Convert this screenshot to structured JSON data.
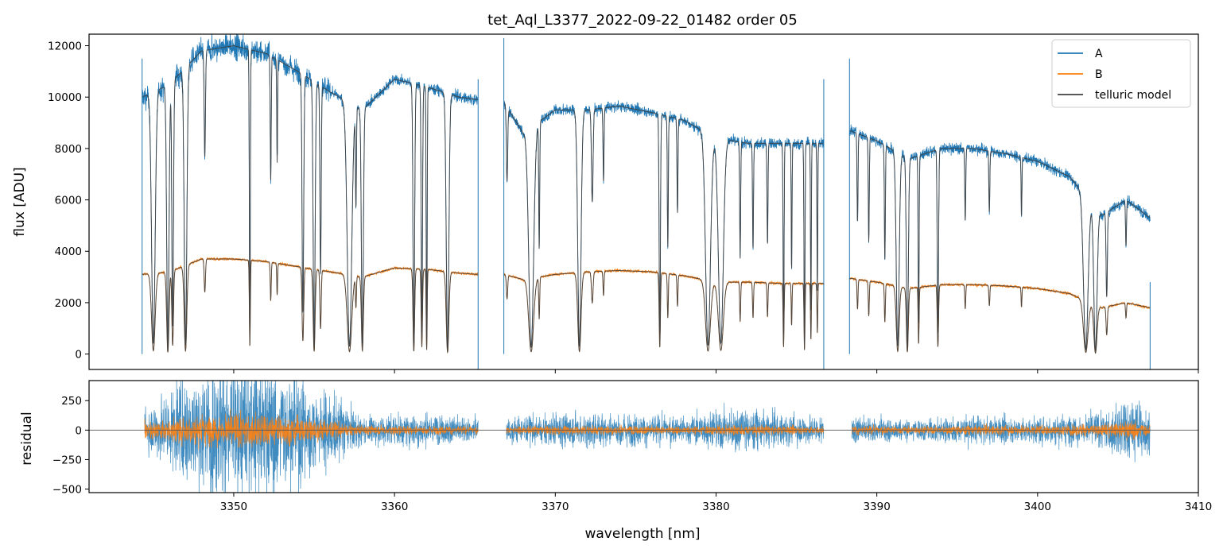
{
  "chart_data": [
    {
      "type": "line",
      "panel": "top",
      "title": "tet_Aql_L3377_2022-09-22_01482  order 05",
      "xlabel": "",
      "ylabel": "flux [ADU]",
      "xlim": [
        3341,
        3410
      ],
      "ylim": [
        -600,
        12450
      ],
      "x_ticks": [
        3350,
        3360,
        3370,
        3380,
        3390,
        3400,
        3410
      ],
      "y_ticks": [
        0,
        2000,
        4000,
        6000,
        8000,
        10000,
        12000
      ],
      "y_tick_labels": [
        "0",
        "2000",
        "4000",
        "6000",
        "8000",
        "10000",
        "12000"
      ],
      "legend_position": "top-right",
      "segments": [
        {
          "x_start": 3344.3,
          "x_end": 3365.2
        },
        {
          "x_start": 3366.8,
          "x_end": 3386.7
        },
        {
          "x_start": 3388.3,
          "x_end": 3407.0
        }
      ],
      "series": [
        {
          "name": "A",
          "color": "#1f77b4",
          "continuum": [
            [
              3344.3,
              10000
            ],
            [
              3346,
              10500
            ],
            [
              3348,
              11800
            ],
            [
              3350,
              12000
            ],
            [
              3352,
              11700
            ],
            [
              3354,
              11000
            ],
            [
              3356,
              10200
            ],
            [
              3358,
              9500
            ],
            [
              3360,
              10700
            ],
            [
              3362,
              10400
            ],
            [
              3364,
              10000
            ],
            [
              3365.2,
              9900
            ],
            [
              3366.8,
              9800
            ],
            [
              3368,
              8600
            ],
            [
              3370,
              9500
            ],
            [
              3372,
              9500
            ],
            [
              3374,
              9650
            ],
            [
              3376,
              9400
            ],
            [
              3378,
              9100
            ],
            [
              3380,
              8400
            ],
            [
              3382,
              8200
            ],
            [
              3384,
              8200
            ],
            [
              3386.7,
              8200
            ],
            [
              3388.3,
              8700
            ],
            [
              3390,
              8300
            ],
            [
              3392,
              7600
            ],
            [
              3394,
              8000
            ],
            [
              3396,
              8000
            ],
            [
              3398,
              7800
            ],
            [
              3400,
              7500
            ],
            [
              3402,
              6900
            ],
            [
              3404,
              5400
            ],
            [
              3405.5,
              6000
            ],
            [
              3407,
              5300
            ]
          ],
          "absorption_lines": [
            [
              3345.0,
              0.96,
              0.22
            ],
            [
              3345.9,
              0.98,
              0.14
            ],
            [
              3346.2,
              0.9,
              0.1
            ],
            [
              3347.0,
              0.97,
              0.16
            ],
            [
              3348.2,
              0.35,
              0.08
            ],
            [
              3351.0,
              0.92,
              0.06
            ],
            [
              3352.3,
              0.42,
              0.06
            ],
            [
              3352.7,
              0.35,
              0.05
            ],
            [
              3354.3,
              0.85,
              0.1
            ],
            [
              3355.0,
              0.97,
              0.12
            ],
            [
              3355.4,
              0.7,
              0.08
            ],
            [
              3357.2,
              0.97,
              0.28
            ],
            [
              3357.6,
              0.4,
              0.06
            ],
            [
              3358.0,
              0.96,
              0.12
            ],
            [
              3361.2,
              0.97,
              0.1
            ],
            [
              3361.7,
              0.92,
              0.08
            ],
            [
              3362.0,
              0.95,
              0.06
            ],
            [
              3363.3,
              0.98,
              0.16
            ],
            [
              3367.0,
              0.3,
              0.08
            ],
            [
              3368.5,
              0.97,
              0.3
            ],
            [
              3369.0,
              0.55,
              0.06
            ],
            [
              3371.5,
              0.97,
              0.2
            ],
            [
              3372.3,
              0.38,
              0.1
            ],
            [
              3373.0,
              0.3,
              0.06
            ],
            [
              3376.5,
              0.92,
              0.08
            ],
            [
              3377.0,
              0.55,
              0.06
            ],
            [
              3377.6,
              0.4,
              0.06
            ],
            [
              3379.5,
              0.96,
              0.3
            ],
            [
              3380.3,
              0.95,
              0.3
            ],
            [
              3381.5,
              0.55,
              0.06
            ],
            [
              3382.3,
              0.5,
              0.06
            ],
            [
              3383.2,
              0.48,
              0.06
            ],
            [
              3384.2,
              0.9,
              0.06
            ],
            [
              3384.7,
              0.6,
              0.05
            ],
            [
              3385.5,
              0.95,
              0.06
            ],
            [
              3385.9,
              0.8,
              0.05
            ],
            [
              3386.3,
              0.7,
              0.05
            ],
            [
              3388.8,
              0.4,
              0.06
            ],
            [
              3389.5,
              0.48,
              0.06
            ],
            [
              3390.5,
              0.55,
              0.06
            ],
            [
              3391.3,
              0.96,
              0.18
            ],
            [
              3391.9,
              0.97,
              0.12
            ],
            [
              3392.6,
              0.85,
              0.06
            ],
            [
              3393.8,
              0.9,
              0.08
            ],
            [
              3395.5,
              0.35,
              0.06
            ],
            [
              3397.0,
              0.3,
              0.06
            ],
            [
              3399.0,
              0.3,
              0.05
            ],
            [
              3403.0,
              0.97,
              0.28
            ],
            [
              3403.6,
              0.98,
              0.2
            ],
            [
              3404.3,
              0.6,
              0.08
            ],
            [
              3405.5,
              0.3,
              0.06
            ]
          ],
          "noise_amplitude": 150
        },
        {
          "name": "B",
          "color": "#ff7f0e",
          "continuum": [
            [
              3344.3,
              3100
            ],
            [
              3346,
              3200
            ],
            [
              3348,
              3700
            ],
            [
              3350,
              3700
            ],
            [
              3352,
              3600
            ],
            [
              3354,
              3400
            ],
            [
              3356,
              3200
            ],
            [
              3358,
              3000
            ],
            [
              3360,
              3350
            ],
            [
              3362,
              3300
            ],
            [
              3364,
              3150
            ],
            [
              3365.2,
              3100
            ],
            [
              3366.8,
              3100
            ],
            [
              3368,
              2900
            ],
            [
              3370,
              3100
            ],
            [
              3372,
              3200
            ],
            [
              3374,
              3250
            ],
            [
              3376,
              3200
            ],
            [
              3378,
              3050
            ],
            [
              3380,
              2800
            ],
            [
              3382,
              2800
            ],
            [
              3384,
              2750
            ],
            [
              3386.7,
              2750
            ],
            [
              3388.3,
              2950
            ],
            [
              3390,
              2800
            ],
            [
              3392,
              2550
            ],
            [
              3394,
              2700
            ],
            [
              3396,
              2700
            ],
            [
              3398,
              2650
            ],
            [
              3400,
              2550
            ],
            [
              3402,
              2350
            ],
            [
              3404,
              1800
            ],
            [
              3405.5,
              2000
            ],
            [
              3407,
              1800
            ]
          ],
          "noise_amplitude": 40
        },
        {
          "name": "telluric model",
          "color": "#404040",
          "description_in_figure": "model overplotted on A and B"
        }
      ]
    },
    {
      "type": "line",
      "panel": "bottom",
      "title": "",
      "xlabel": "wavelength [nm]",
      "ylabel": "residual",
      "xlim": [
        3341,
        3410
      ],
      "ylim": [
        -530,
        420
      ],
      "x_ticks": [
        3350,
        3360,
        3370,
        3380,
        3390,
        3400,
        3410
      ],
      "x_tick_labels": [
        "3350",
        "3360",
        "3370",
        "3380",
        "3390",
        "3400",
        "3410"
      ],
      "y_ticks": [
        -500,
        -250,
        0,
        250
      ],
      "y_tick_labels": [
        "−500",
        "−250",
        "0",
        "250"
      ],
      "zero_line": true,
      "series": [
        {
          "name": "A",
          "color": "#1f77b4",
          "amplitude_profile": [
            [
              3344.5,
              120
            ],
            [
              3347,
              350
            ],
            [
              3350,
              450
            ],
            [
              3353,
              400
            ],
            [
              3356,
              250
            ],
            [
              3358,
              90
            ],
            [
              3361,
              110
            ],
            [
              3365,
              80
            ],
            [
              3367,
              80
            ],
            [
              3370,
              110
            ],
            [
              3374,
              110
            ],
            [
              3378,
              90
            ],
            [
              3381,
              150
            ],
            [
              3384,
              100
            ],
            [
              3386.7,
              90
            ],
            [
              3388.3,
              90
            ],
            [
              3392,
              70
            ],
            [
              3396,
              90
            ],
            [
              3400,
              90
            ],
            [
              3404,
              110
            ],
            [
              3406,
              220
            ],
            [
              3407,
              150
            ]
          ]
        },
        {
          "name": "B",
          "color": "#ff7f0e",
          "amplitude_profile": [
            [
              3344.5,
              60
            ],
            [
              3347,
              90
            ],
            [
              3350,
              110
            ],
            [
              3353,
              100
            ],
            [
              3356,
              60
            ],
            [
              3358,
              30
            ],
            [
              3361,
              30
            ],
            [
              3365,
              25
            ],
            [
              3367,
              25
            ],
            [
              3370,
              30
            ],
            [
              3374,
              30
            ],
            [
              3378,
              25
            ],
            [
              3381,
              35
            ],
            [
              3384,
              30
            ],
            [
              3386.7,
              25
            ],
            [
              3388.3,
              30
            ],
            [
              3392,
              25
            ],
            [
              3396,
              30
            ],
            [
              3400,
              30
            ],
            [
              3404,
              40
            ],
            [
              3406,
              60
            ],
            [
              3407,
              40
            ]
          ]
        }
      ]
    }
  ]
}
